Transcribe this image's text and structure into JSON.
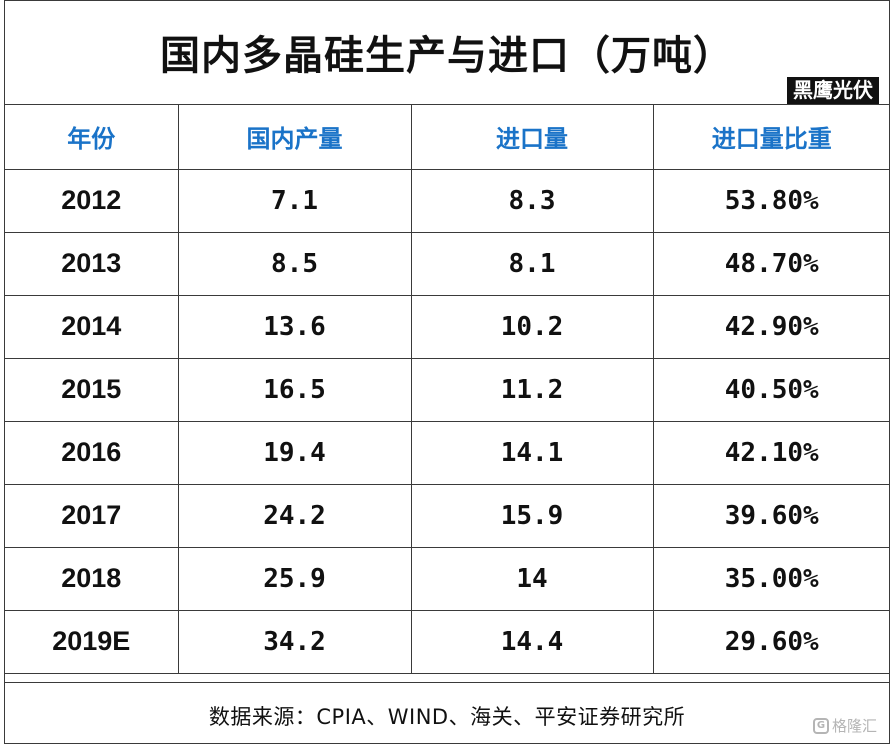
{
  "title": "国内多晶硅生产与进口（万吨）",
  "brand": "黑鹰光伏",
  "source": "数据来源：CPIA、WIND、海关、平安证券研究所",
  "watermark": "格隆汇",
  "columns": [
    "年份",
    "国内产量",
    "进口量",
    "进口量比重"
  ],
  "rows": [
    [
      "2012",
      "7.1",
      "8.3",
      "53.80%"
    ],
    [
      "2013",
      "8.5",
      "8.1",
      "48.70%"
    ],
    [
      "2014",
      "13.6",
      "10.2",
      "42.90%"
    ],
    [
      "2015",
      "16.5",
      "11.2",
      "40.50%"
    ],
    [
      "2016",
      "19.4",
      "14.1",
      "42.10%"
    ],
    [
      "2017",
      "24.2",
      "15.9",
      "39.60%"
    ],
    [
      "2018",
      "25.9",
      "14",
      "35.00%"
    ],
    [
      "2019E",
      "34.2",
      "14.4",
      "29.60%"
    ]
  ],
  "colors": {
    "header_text": "#1a73c8",
    "border": "#3a3a3a",
    "brand_bg": "#111111"
  },
  "chart_data": {
    "type": "table",
    "title": "国内多晶硅生产与进口（万吨）",
    "columns": [
      "年份",
      "国内产量",
      "进口量",
      "进口量比重"
    ],
    "categories": [
      "2012",
      "2013",
      "2014",
      "2015",
      "2016",
      "2017",
      "2018",
      "2019E"
    ],
    "series": [
      {
        "name": "国内产量",
        "values": [
          7.1,
          8.5,
          13.6,
          16.5,
          19.4,
          24.2,
          25.9,
          34.2
        ]
      },
      {
        "name": "进口量",
        "values": [
          8.3,
          8.1,
          10.2,
          11.2,
          14.1,
          15.9,
          14,
          14.4
        ]
      },
      {
        "name": "进口量比重",
        "values": [
          53.8,
          48.7,
          42.9,
          40.5,
          42.1,
          39.6,
          35.0,
          29.6
        ]
      }
    ]
  }
}
